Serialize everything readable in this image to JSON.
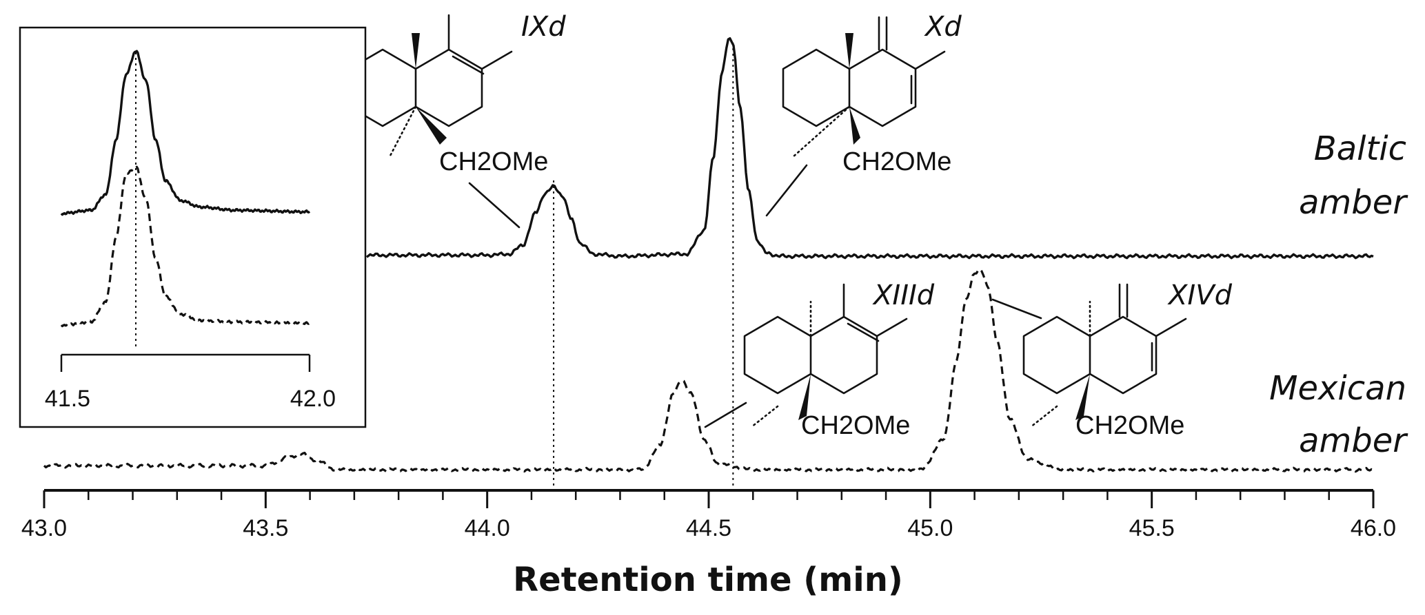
{
  "chart_data": [
    {
      "type": "line",
      "xlabel": "Retention time (min)",
      "xlim": [
        43.0,
        46.0
      ],
      "xticks": [
        "43.0",
        "43.5",
        "44.0",
        "44.5",
        "45.0",
        "45.5",
        "46.0"
      ],
      "minor_tick_step": 0.1,
      "series": [
        {
          "name": "Baltic amber",
          "style": "solid",
          "x": [
            42.3,
            44.0,
            44.05,
            44.08,
            44.11,
            44.13,
            44.15,
            44.17,
            44.19,
            44.21,
            44.24,
            44.3,
            44.45,
            44.49,
            44.51,
            44.53,
            44.545,
            44.555,
            44.57,
            44.59,
            44.61,
            44.63,
            44.66,
            44.75,
            46.0
          ],
          "y": [
            0,
            0.005,
            0.01,
            0.05,
            0.2,
            0.29,
            0.32,
            0.28,
            0.17,
            0.06,
            0.01,
            0,
            0.01,
            0.12,
            0.45,
            0.85,
            1.0,
            0.98,
            0.7,
            0.3,
            0.07,
            0.015,
            0,
            0,
            0
          ]
        },
        {
          "name": "Mexican amber",
          "style": "dashed",
          "x": [
            43.0,
            43.5,
            43.55,
            43.58,
            43.61,
            43.66,
            44.35,
            44.39,
            44.42,
            44.44,
            44.46,
            44.49,
            44.52,
            44.6,
            44.98,
            45.03,
            45.06,
            45.08,
            45.1,
            45.115,
            45.13,
            45.15,
            45.18,
            45.22,
            45.3,
            46.0
          ],
          "y": [
            0.02,
            0.02,
            0.06,
            0.08,
            0.05,
            0.0,
            0.0,
            0.12,
            0.38,
            0.45,
            0.38,
            0.15,
            0.03,
            0.0,
            0.0,
            0.15,
            0.55,
            0.85,
            0.98,
            1.0,
            0.92,
            0.65,
            0.25,
            0.05,
            0.0,
            0.0
          ]
        }
      ],
      "reference_lines": [
        44.15,
        44.555
      ],
      "compounds": [
        {
          "label": "IXd",
          "substituent": "CH2OMe"
        },
        {
          "label": "Xd",
          "substituent": "CH2OMe"
        },
        {
          "label": "XIIId",
          "substituent": "CH2OMe"
        },
        {
          "label": "XIVd",
          "substituent": "CH2OMe"
        }
      ],
      "sample_labels": [
        {
          "line1": "Baltic",
          "line2": "amber"
        },
        {
          "line1": "Mexican",
          "line2": "amber"
        }
      ]
    },
    {
      "type": "line",
      "panel": "inset",
      "xlim": [
        41.5,
        42.0
      ],
      "xticks": [
        "41.5",
        "42.0"
      ],
      "reference_line": 41.65,
      "series": [
        {
          "name": "Baltic amber",
          "style": "solid",
          "x": [
            41.5,
            41.56,
            41.59,
            41.61,
            41.63,
            41.65,
            41.67,
            41.69,
            41.71,
            41.74,
            41.78,
            41.85,
            42.0
          ],
          "y": [
            0.0,
            0.02,
            0.12,
            0.45,
            0.85,
            1.0,
            0.82,
            0.45,
            0.2,
            0.08,
            0.04,
            0.02,
            0.01
          ]
        },
        {
          "name": "Mexican amber",
          "style": "dashed",
          "x": [
            41.5,
            41.56,
            41.59,
            41.61,
            41.63,
            41.65,
            41.67,
            41.69,
            41.71,
            41.74,
            41.78,
            41.85,
            42.0
          ],
          "y": [
            0.0,
            0.02,
            0.15,
            0.55,
            0.95,
            1.0,
            0.8,
            0.42,
            0.18,
            0.07,
            0.03,
            0.02,
            0.01
          ]
        }
      ]
    }
  ]
}
